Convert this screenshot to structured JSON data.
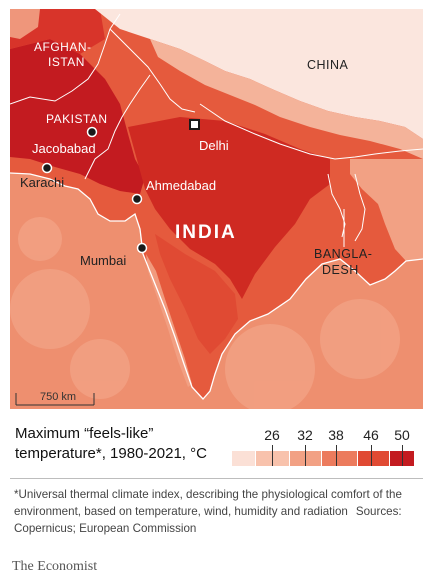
{
  "map": {
    "countries": {
      "afghanistan": [
        "AFGHAN-",
        "ISTAN"
      ],
      "pakistan": "PAKISTAN",
      "china": "CHINA",
      "india": "INDIA",
      "bangladesh": [
        "BANGLA-",
        "DESH"
      ]
    },
    "cities": {
      "jacobabad": "Jacobabad",
      "karachi": "Karachi",
      "delhi": "Delhi",
      "ahmedabad": "Ahmedabad",
      "mumbai": "Mumbai"
    },
    "scale_label": "750 km"
  },
  "legend": {
    "title": "Maximum “feels-like” temperature*, 1980-2021, °C",
    "ticks": [
      "26",
      "32",
      "38",
      "46",
      "50"
    ],
    "colors": [
      "#fbe0d6",
      "#f8c2ac",
      "#f2a184",
      "#ec7b5d",
      "#e04a33",
      "#c31b20"
    ]
  },
  "footnote": {
    "text": "*Universal thermal climate index, describing the physiological comfort of the environment, based on temperature, wind, humidity and radiation",
    "sources": "Sources: Copernicus; European Commission"
  },
  "brand": "The Economist",
  "colors": {
    "land_hot": "#c31b20",
    "land_warm": "#e04a33",
    "land_mild": "#ec7b5d",
    "ocean": "#f2a184",
    "highlands": "#fbe0d6"
  }
}
